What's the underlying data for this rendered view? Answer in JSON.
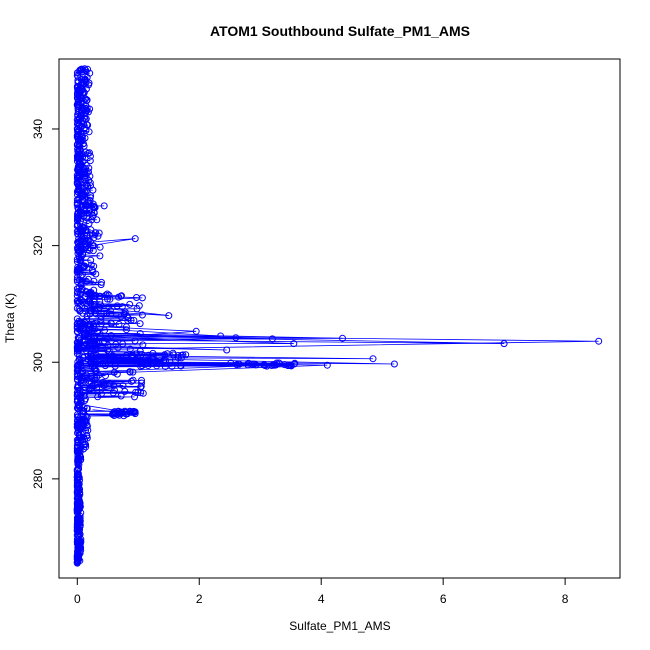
{
  "chart_data": {
    "type": "scatter",
    "title": "ATOM1 Southbound Sulfate_PM1_AMS",
    "xlabel": "Sulfate_PM1_AMS",
    "ylabel": "Theta (K)",
    "xlim": [
      -0.3,
      8.9
    ],
    "ylim": [
      263,
      352
    ],
    "x_ticks": [
      0,
      2,
      4,
      6,
      8
    ],
    "y_ticks": [
      280,
      300,
      320,
      340
    ],
    "marker": "open-circle",
    "connected": true,
    "grid": false,
    "legend": "none",
    "series_color": "#0000ff",
    "features": {
      "main_column": {
        "x_range": [
          0.0,
          0.5
        ],
        "y_range": [
          265.5,
          350.5
        ]
      },
      "outliers": [
        {
          "x": 8.55,
          "y": 303.6
        },
        {
          "x": 7.0,
          "y": 303.2
        },
        {
          "x": 5.2,
          "y": 299.7
        },
        {
          "x": 4.85,
          "y": 300.6
        },
        {
          "x": 4.35,
          "y": 304.1
        },
        {
          "x": 4.1,
          "y": 299.5
        },
        {
          "x": 3.55,
          "y": 303.2
        },
        {
          "x": 3.4,
          "y": 299.6
        },
        {
          "x": 3.2,
          "y": 304.0
        },
        {
          "x": 2.6,
          "y": 304.2
        },
        {
          "x": 2.45,
          "y": 302.1
        },
        {
          "x": 2.35,
          "y": 304.5
        },
        {
          "x": 1.95,
          "y": 305.3
        },
        {
          "x": 1.5,
          "y": 308.0
        },
        {
          "x": 0.95,
          "y": 321.2
        },
        {
          "x": 0.95,
          "y": 291.2
        },
        {
          "x": 0.75,
          "y": 296.0
        }
      ]
    }
  }
}
